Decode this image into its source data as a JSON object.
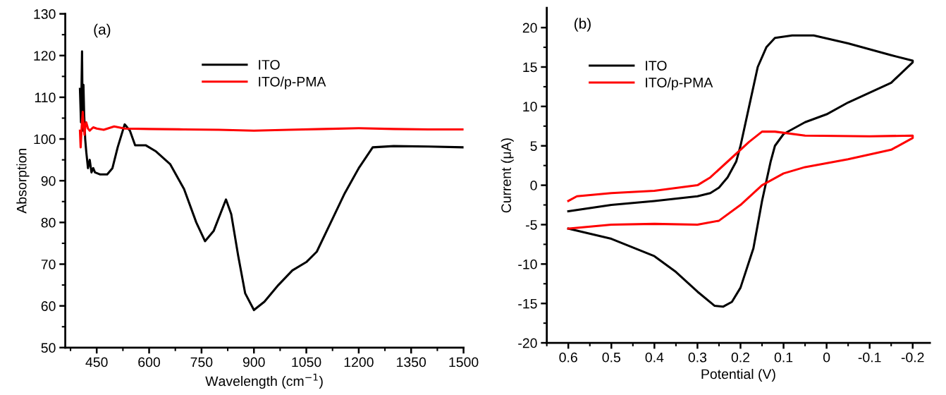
{
  "chart_data": [
    {
      "type": "line",
      "xlabel": "Wavelength (cm$^{−1}$)",
      "ylabel": "Absorption",
      "annotations": [
        "(a)"
      ],
      "legend": "top",
      "grid": false,
      "marker": "none",
      "line_style": "solid",
      "xlim": [
        360,
        1500
      ],
      "xticks": [
        450,
        600,
        750,
        900,
        1050,
        1200,
        1350,
        1500
      ],
      "ylim": [
        50,
        130
      ],
      "yticks": [
        50,
        60,
        70,
        80,
        90,
        100,
        110,
        120,
        130
      ],
      "series": [
        {
          "name": "ITO",
          "color": "#000000",
          "x": [
            402,
            405,
            408,
            410,
            412,
            414,
            417,
            420,
            425,
            430,
            435,
            440,
            445,
            460,
            480,
            495,
            510,
            530,
            545,
            560,
            590,
            620,
            660,
            700,
            735,
            760,
            785,
            820,
            835,
            855,
            875,
            900,
            930,
            970,
            1010,
            1050,
            1080,
            1120,
            1160,
            1200,
            1240,
            1300,
            1400,
            1500
          ],
          "values": [
            112,
            104,
            121,
            102,
            113,
            106,
            100,
            97,
            93,
            95,
            92,
            93,
            92,
            91.5,
            91.5,
            93,
            98,
            103.5,
            102,
            98.5,
            98.5,
            97,
            94,
            88,
            80,
            75.5,
            78,
            85.5,
            82,
            72,
            63,
            59,
            61,
            65,
            68.5,
            70.5,
            73,
            80,
            87,
            93,
            98,
            98.3,
            98.2,
            98
          ]
        },
        {
          "name": "ITO/p-PMA",
          "color": "#ff0000",
          "x": [
            402,
            404,
            407,
            410,
            413,
            415,
            418,
            420,
            425,
            430,
            440,
            450,
            470,
            500,
            530,
            600,
            700,
            800,
            900,
            1000,
            1100,
            1200,
            1300,
            1400,
            1500
          ],
          "values": [
            102,
            98,
            103,
            106.5,
            103,
            101,
            103.5,
            104,
            102.5,
            102,
            102.8,
            102.5,
            102.2,
            103,
            102.5,
            102.4,
            102.3,
            102.2,
            102,
            102.2,
            102.4,
            102.6,
            102.4,
            102.3,
            102.3
          ]
        }
      ]
    },
    {
      "type": "line",
      "xlabel": "Potential (V)",
      "ylabel": "Current (μA)",
      "annotations": [
        "(b)"
      ],
      "legend": "top left",
      "grid": false,
      "marker": "none",
      "line_style": "solid",
      "xlim": [
        0.65,
        -0.24
      ],
      "xticks": [
        0.6,
        0.5,
        0.4,
        0.3,
        0.2,
        0.1,
        0,
        -0.1,
        -0.2
      ],
      "ylim": [
        -20,
        22.5
      ],
      "yticks": [
        -20,
        -15,
        -10,
        -5,
        0,
        5,
        10,
        15,
        20
      ],
      "series": [
        {
          "name": "ITO",
          "color": "#000000",
          "x": [
            0.6,
            0.5,
            0.4,
            0.3,
            0.27,
            0.25,
            0.23,
            0.21,
            0.2,
            0.18,
            0.16,
            0.14,
            0.12,
            0.08,
            0.03,
            -0.05,
            -0.15,
            -0.2,
            -0.2,
            -0.15,
            -0.05,
            0,
            0.05,
            0.1,
            0.12,
            0.13,
            0.15,
            0.17,
            0.2,
            0.22,
            0.24,
            0.26,
            0.3,
            0.35,
            0.4,
            0.5,
            0.6
          ],
          "values": [
            -3.3,
            -2.5,
            -2,
            -1.4,
            -1,
            -0.3,
            1,
            3,
            5,
            10,
            15,
            17.5,
            18.7,
            19,
            19,
            18,
            16.5,
            15.8,
            15.6,
            13,
            10.5,
            9,
            8,
            6.5,
            5,
            3,
            -2,
            -8,
            -13,
            -14.8,
            -15.4,
            -15.3,
            -13.5,
            -11,
            -9,
            -6.8,
            -5.5
          ]
        },
        {
          "name": "ITO/p-PMA",
          "color": "#ff0000",
          "x": [
            0.6,
            0.58,
            0.5,
            0.4,
            0.3,
            0.27,
            0.22,
            0.18,
            0.15,
            0.12,
            0.05,
            -0.1,
            -0.2,
            -0.2,
            -0.15,
            -0.05,
            0.05,
            0.1,
            0.15,
            0.2,
            0.25,
            0.3,
            0.4,
            0.5,
            0.6
          ],
          "values": [
            -2,
            -1.4,
            -1,
            -0.7,
            0,
            1,
            3.5,
            5.5,
            6.8,
            6.8,
            6.3,
            6.2,
            6.3,
            6,
            4.5,
            3.3,
            2.3,
            1.5,
            0,
            -2.5,
            -4.5,
            -5,
            -4.9,
            -5,
            -5.5
          ]
        }
      ]
    }
  ]
}
